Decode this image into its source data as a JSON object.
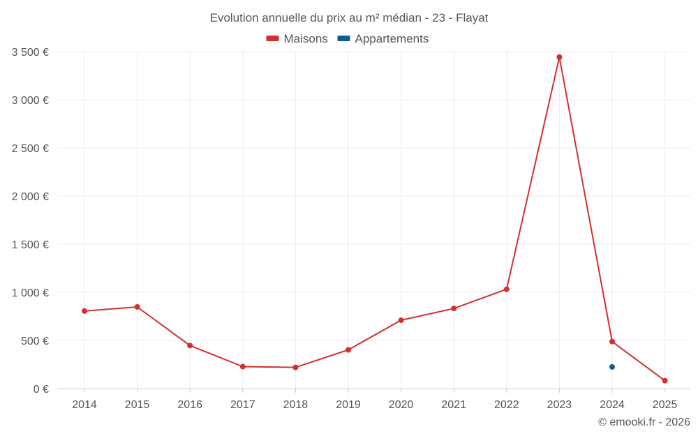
{
  "chart_data": {
    "type": "line",
    "title": "Evolution annuelle du prix au m² médian - 23 - Flayat",
    "categories": [
      "2014",
      "2015",
      "2016",
      "2017",
      "2018",
      "2019",
      "2020",
      "2021",
      "2022",
      "2023",
      "2024",
      "2025"
    ],
    "series": [
      {
        "name": "Maisons",
        "color": "#d32f2f",
        "values": [
          805,
          848,
          447,
          228,
          220,
          402,
          710,
          832,
          1032,
          3443,
          488,
          82
        ]
      },
      {
        "name": "Appartements",
        "color": "#0d5f91",
        "values": [
          null,
          null,
          null,
          null,
          null,
          null,
          null,
          null,
          null,
          null,
          225,
          null
        ]
      }
    ],
    "yticks": [
      "0 €",
      "500 €",
      "1 000 €",
      "1 500 €",
      "2 000 €",
      "2 500 €",
      "3 000 €",
      "3 500 €"
    ],
    "ylim": [
      0,
      3500
    ],
    "xlabel": "",
    "ylabel": "",
    "legend_position": "top-center",
    "grid": true
  },
  "credit": "© emooki.fr - 2026"
}
